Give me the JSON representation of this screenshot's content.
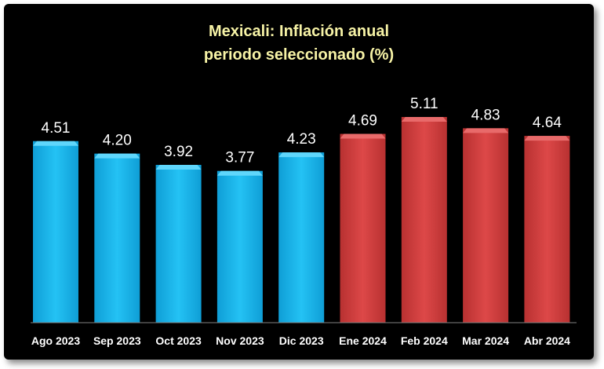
{
  "chart_data": {
    "type": "bar",
    "title_line1": "Mexicali: Inflación anual",
    "title_line2": "periodo seleccionado (%)",
    "categories": [
      "Ago 2023",
      "Sep 2023",
      "Oct 2023",
      "Nov 2023",
      "Dic 2023",
      "Ene 2024",
      "Feb 2024",
      "Mar 2024",
      "Abr 2024"
    ],
    "values": [
      4.51,
      4.2,
      3.92,
      3.77,
      4.23,
      4.69,
      5.11,
      4.83,
      4.64
    ],
    "value_labels": [
      "4.51",
      "4.20",
      "3.92",
      "3.77",
      "4.23",
      "4.69",
      "5.11",
      "4.83",
      "4.64"
    ],
    "bar_colors": [
      "#18b4ea",
      "#18b4ea",
      "#18b4ea",
      "#18b4ea",
      "#18b4ea",
      "#d23c3c",
      "#d23c3c",
      "#d23c3c",
      "#d23c3c"
    ],
    "ylim": [
      0,
      5.11
    ],
    "grid": false,
    "legend": "none",
    "background_color": "#000000",
    "title_color": "#f7f3a6"
  }
}
